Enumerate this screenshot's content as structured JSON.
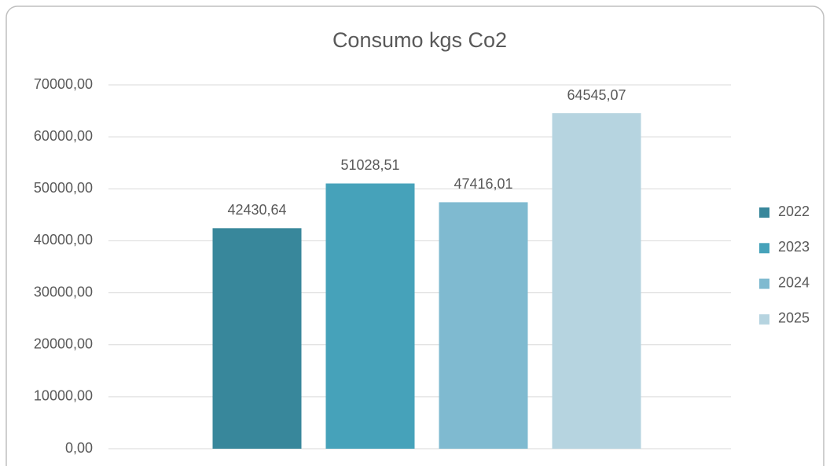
{
  "chart_data": {
    "type": "bar",
    "title": "Consumo kgs Co2",
    "categories": [
      null
    ],
    "series": [
      {
        "name": "2022",
        "color": "#38879b",
        "values": [
          42430.64
        ],
        "value_labels": [
          "42430,64"
        ]
      },
      {
        "name": "2023",
        "color": "#46a2ba",
        "values": [
          51028.51
        ],
        "value_labels": [
          "51028,51"
        ]
      },
      {
        "name": "2024",
        "color": "#7fbad0",
        "values": [
          47416.01
        ],
        "value_labels": [
          "47416,01"
        ]
      },
      {
        "name": "2025",
        "color": "#b6d4e0",
        "values": [
          64545.07
        ],
        "value_labels": [
          "64545,07"
        ]
      }
    ],
    "ylim": [
      0,
      70000
    ],
    "yticks": [
      {
        "value": 0,
        "label": "0,00"
      },
      {
        "value": 10000,
        "label": "10000,00"
      },
      {
        "value": 20000,
        "label": "20000,00"
      },
      {
        "value": 30000,
        "label": "30000,00"
      },
      {
        "value": 40000,
        "label": "40000,00"
      },
      {
        "value": 50000,
        "label": "50000,00"
      },
      {
        "value": 60000,
        "label": "60000,00"
      },
      {
        "value": 70000,
        "label": "70000,00"
      }
    ],
    "grid": true,
    "legend": "right"
  }
}
